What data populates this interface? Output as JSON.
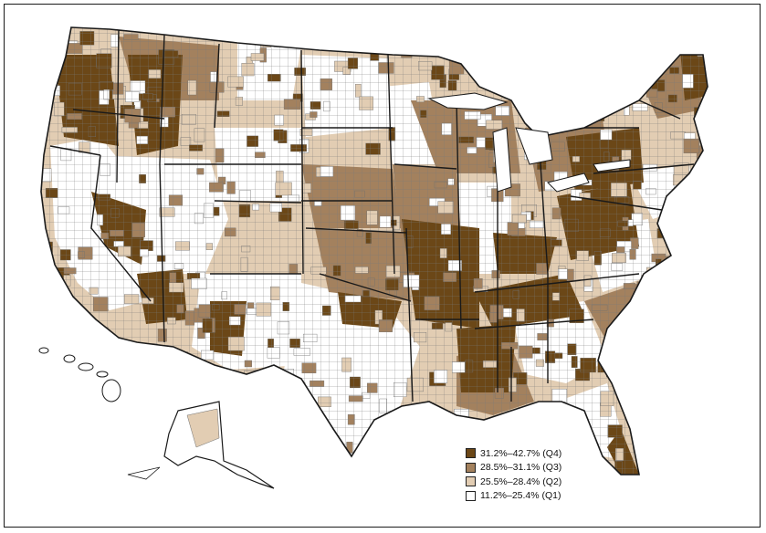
{
  "colors": {
    "q4": "#6b4717",
    "q3": "#a3815e",
    "q2": "#e2cdb3",
    "q1": "#ffffff",
    "outline": "#1a1a1a",
    "county_line": "#6f6f6f"
  },
  "legend": [
    {
      "label": "31.2%–42.7% (Q4)",
      "color_key": "q4"
    },
    {
      "label": "28.5%–31.1% (Q3)",
      "color_key": "q3"
    },
    {
      "label": "25.5%–28.4% (Q2)",
      "color_key": "q2"
    },
    {
      "label": "11.2%–25.4% (Q1)",
      "color_key": "q1"
    }
  ]
}
